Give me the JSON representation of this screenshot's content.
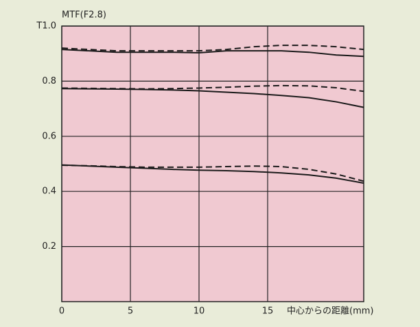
{
  "chart_data": {
    "type": "line",
    "title": "MTF(F2.8)",
    "x_label": "中心からの距離(mm)",
    "x": [
      0,
      2,
      4,
      6,
      8,
      10,
      12,
      14,
      16,
      18,
      20,
      22
    ],
    "series": [
      {
        "color": "#1a1a1a",
        "dashed": false,
        "values": [
          0.915,
          0.91,
          0.905,
          0.905,
          0.905,
          0.903,
          0.91,
          0.91,
          0.91,
          0.905,
          0.895,
          0.89
        ]
      },
      {
        "color": "#1a1a1a",
        "dashed": true,
        "values": [
          0.92,
          0.915,
          0.91,
          0.91,
          0.91,
          0.91,
          0.915,
          0.925,
          0.93,
          0.93,
          0.925,
          0.915
        ]
      },
      {
        "color": "#1a1a1a",
        "dashed": false,
        "values": [
          0.773,
          0.772,
          0.771,
          0.77,
          0.768,
          0.765,
          0.76,
          0.755,
          0.748,
          0.74,
          0.725,
          0.705
        ]
      },
      {
        "color": "#1a1a1a",
        "dashed": true,
        "values": [
          0.775,
          0.774,
          0.773,
          0.772,
          0.773,
          0.775,
          0.778,
          0.782,
          0.784,
          0.783,
          0.776,
          0.763
        ]
      },
      {
        "color": "#1a1a1a",
        "dashed": false,
        "values": [
          0.496,
          0.492,
          0.488,
          0.484,
          0.48,
          0.477,
          0.475,
          0.472,
          0.467,
          0.46,
          0.448,
          0.43
        ]
      },
      {
        "color": "#1a1a1a",
        "dashed": true,
        "values": [
          0.495,
          0.493,
          0.49,
          0.488,
          0.488,
          0.488,
          0.49,
          0.492,
          0.49,
          0.48,
          0.463,
          0.437
        ]
      }
    ],
    "xlim": [
      0,
      22
    ],
    "xticks": [
      0,
      5,
      10,
      15
    ],
    "ylim": [
      0,
      1
    ],
    "yticks": [
      0.2,
      0.4,
      0.6,
      0.8,
      {
        "value": 1,
        "label": "T1.0"
      }
    ],
    "grid": true
  }
}
